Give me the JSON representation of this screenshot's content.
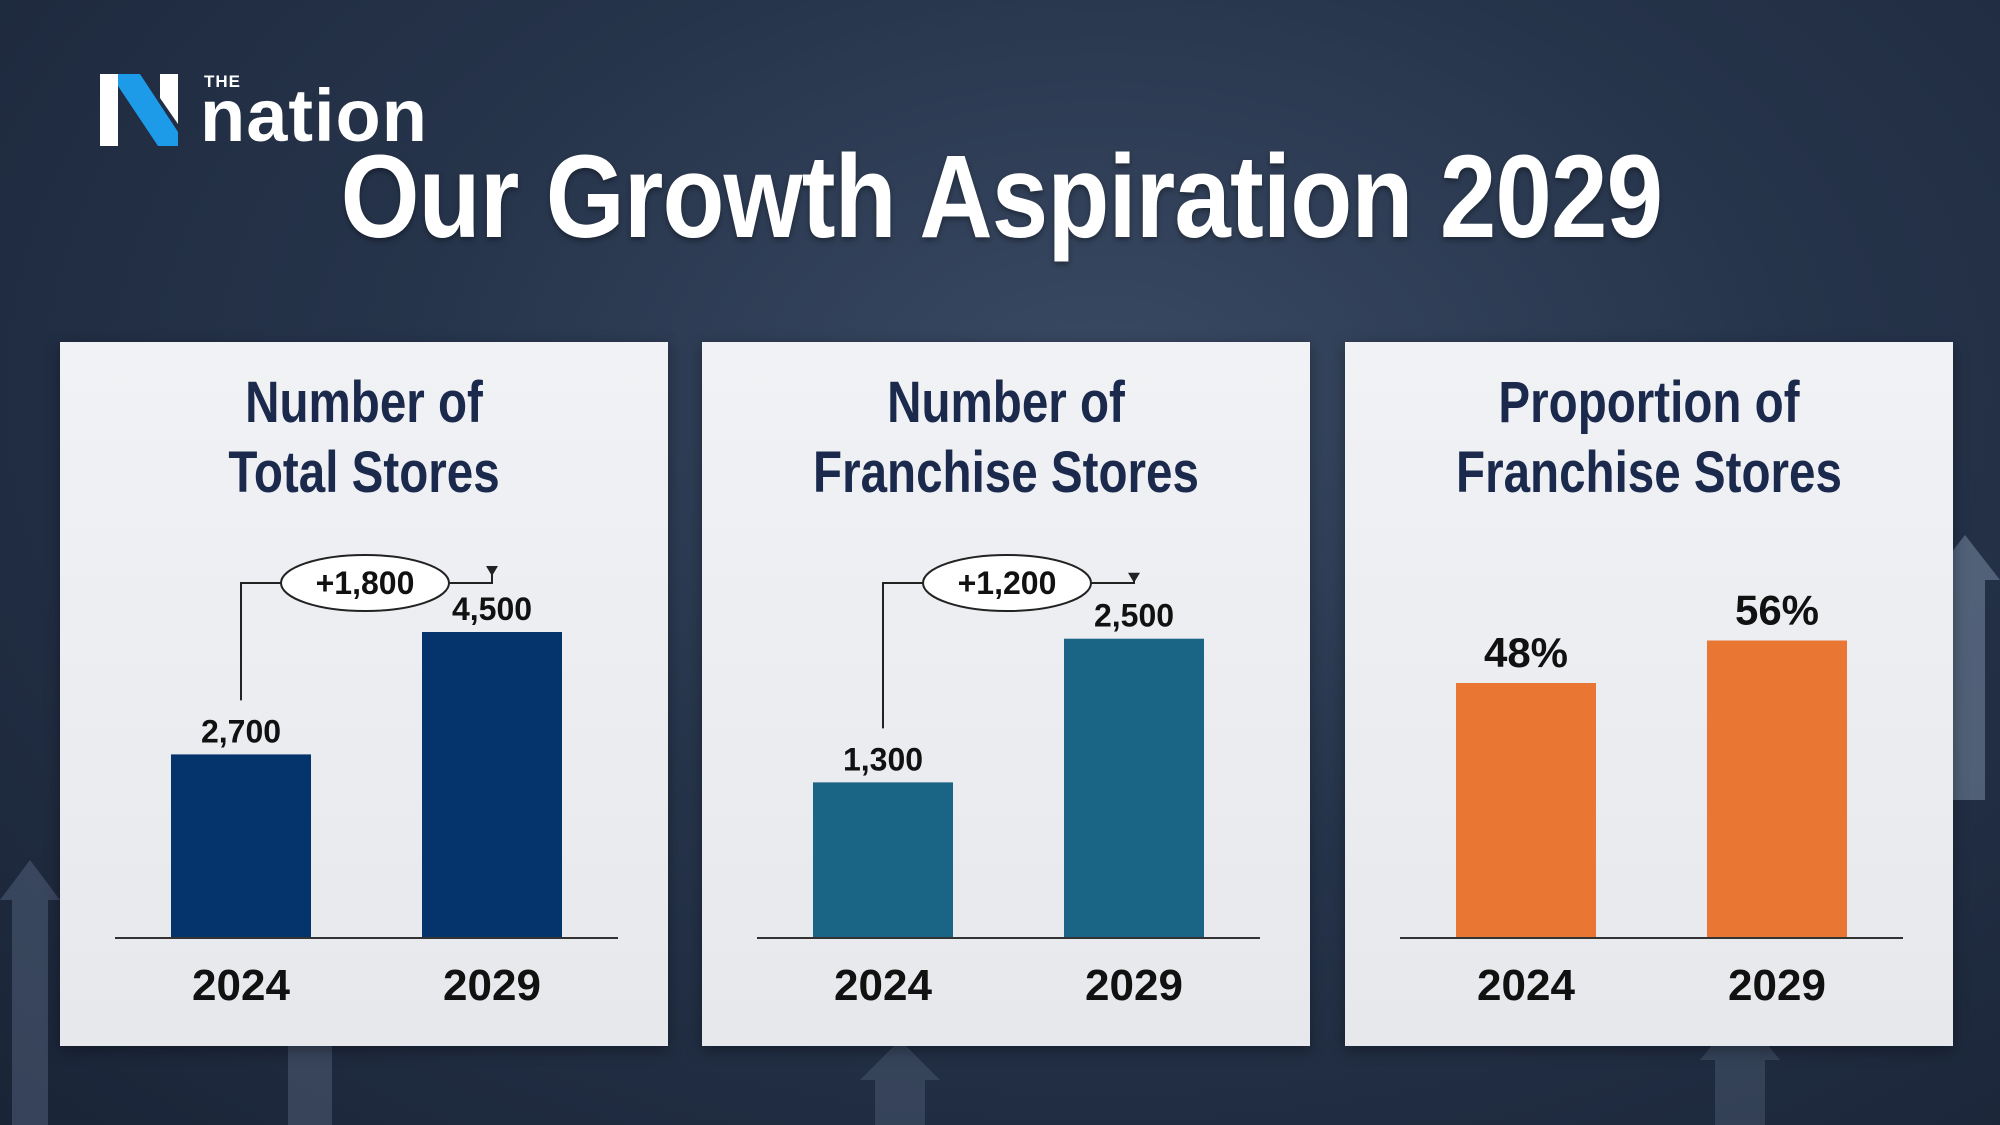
{
  "brand": {
    "prefix": "THE",
    "name": "nation"
  },
  "title": "Our Growth Aspiration 2029",
  "colors": {
    "total": "#04346b",
    "franchise": "#1a6585",
    "proportion": "#ea7634",
    "text_dark": "#1b2a4c"
  },
  "chart_data": [
    {
      "type": "bar",
      "title_lines": [
        "Number of",
        "Total Stores"
      ],
      "categories": [
        "2024",
        "2029"
      ],
      "values": [
        2700,
        4500
      ],
      "value_labels": [
        "2,700",
        "4,500"
      ],
      "change_label": "+1,800",
      "ylim": [
        0,
        5000
      ],
      "color": "#04346b"
    },
    {
      "type": "bar",
      "title_lines": [
        "Number of",
        "Franchise Stores"
      ],
      "categories": [
        "2024",
        "2029"
      ],
      "values": [
        1300,
        2500
      ],
      "value_labels": [
        "1,300",
        "2,500"
      ],
      "change_label": "+1,200",
      "ylim": [
        0,
        2840
      ],
      "color": "#1a6585"
    },
    {
      "type": "bar",
      "title_lines": [
        "Proportion of",
        "Franchise Stores"
      ],
      "categories": [
        "2024",
        "2029"
      ],
      "values": [
        48,
        56
      ],
      "value_labels": [
        "48%",
        "56%"
      ],
      "ylim": [
        0,
        64
      ],
      "color": "#ea7634"
    }
  ]
}
